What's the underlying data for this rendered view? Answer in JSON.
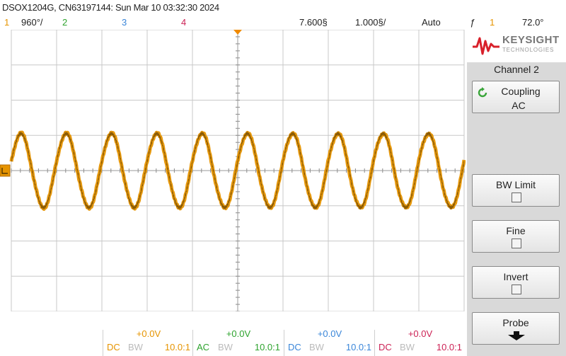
{
  "header": {
    "title": "DSOX1204G, CN63197144: Sun Mar 10 03:32:30 2024"
  },
  "status": {
    "ch1_num": "1",
    "ch1_scale": "960°/",
    "ch2_num": "2",
    "ch3_num": "3",
    "ch4_num": "4",
    "time_pos": "7.600§",
    "time_scale": "1.000§/",
    "trigger_mode": "Auto",
    "trigger_symbol": "ƒ",
    "trigger_source": "1",
    "trigger_level": "72.0°"
  },
  "brand": {
    "name": "KEYSIGHT",
    "sub": "TECHNOLOGIES"
  },
  "menu": {
    "title": "Channel 2",
    "coupling_label": "Coupling",
    "coupling_value": "AC",
    "bw_limit_label": "BW Limit",
    "fine_label": "Fine",
    "invert_label": "Invert",
    "probe_label": "Probe"
  },
  "channels": [
    {
      "offset": "+0.0V",
      "coupling": "DC",
      "bw": "BW",
      "probe": "10.0:1",
      "color": "#e69400"
    },
    {
      "offset": "+0.0V",
      "coupling": "AC",
      "bw": "BW",
      "probe": "10.0:1",
      "color": "#2ea32e"
    },
    {
      "offset": "+0.0V",
      "coupling": "DC",
      "bw": "BW",
      "probe": "10.0:1",
      "color": "#3a86d9"
    },
    {
      "offset": "+0.0V",
      "coupling": "DC",
      "bw": "BW",
      "probe": "10.0:1",
      "color": "#cc2255"
    }
  ],
  "waveform": {
    "channel": "1",
    "color": "#e69400",
    "cycles_on_screen": 10,
    "amplitude_divisions": 1.05
  },
  "colors": {
    "trace": "#e69400",
    "grid": "#c8c8c8",
    "background": "#ffffff",
    "panel": "#d9d9d9",
    "brand_red": "#d8202a"
  }
}
